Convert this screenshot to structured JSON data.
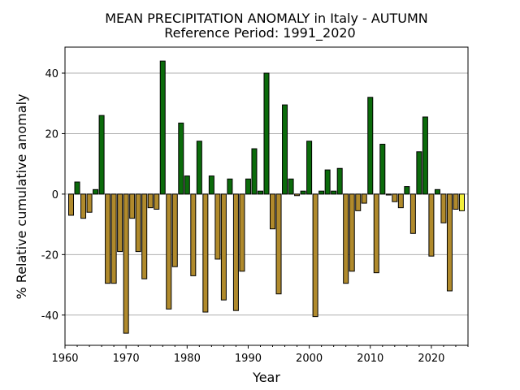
{
  "chart_data": {
    "type": "bar",
    "title": "MEAN PRECIPITATION ANOMALY in Italy - AUTUMN",
    "subtitle": "Reference Period: 1991_2020",
    "xlabel": "Year",
    "ylabel": "% Relative cumulative anomaly",
    "xlim": [
      1960,
      2026
    ],
    "ylim": [
      -50,
      48.6
    ],
    "xticks": [
      1960,
      1970,
      1980,
      1990,
      2000,
      2010,
      2020
    ],
    "yticks": [
      -40,
      -20,
      0,
      20,
      40
    ],
    "grid": "horizontal",
    "colors": {
      "positive": "#0b6b0b",
      "negative": "#b08a2c",
      "latest": "#f2ee3a",
      "edge": "#000000",
      "grid": "#b0b0b0"
    },
    "years": [
      1961,
      1962,
      1963,
      1964,
      1965,
      1966,
      1967,
      1968,
      1969,
      1970,
      1971,
      1972,
      1973,
      1974,
      1975,
      1976,
      1977,
      1978,
      1979,
      1980,
      1981,
      1982,
      1983,
      1984,
      1985,
      1986,
      1987,
      1988,
      1989,
      1990,
      1991,
      1992,
      1993,
      1994,
      1995,
      1996,
      1997,
      1998,
      1999,
      2000,
      2001,
      2002,
      2003,
      2004,
      2005,
      2006,
      2007,
      2008,
      2009,
      2010,
      2011,
      2012,
      2013,
      2014,
      2015,
      2016,
      2017,
      2018,
      2019,
      2020,
      2021,
      2022,
      2023,
      2024,
      2025
    ],
    "values": [
      -7,
      4,
      -8,
      -6,
      1.5,
      26,
      -29.5,
      -29.5,
      -19,
      -46,
      -8,
      -19,
      -28,
      -4.5,
      -5,
      44,
      -38,
      -24,
      23.5,
      6,
      -27,
      17.5,
      -39,
      6,
      -21.5,
      -35,
      5,
      -38.5,
      -25.5,
      5,
      15,
      1,
      40,
      -11.5,
      -33,
      29.5,
      5,
      -0.5,
      1,
      17.5,
      -40.5,
      1,
      8,
      1,
      8.5,
      -29.5,
      -25.5,
      -5.5,
      -3,
      32,
      -26,
      16.5,
      -0.3,
      -2.5,
      -4.5,
      2.5,
      -13,
      14,
      25.5,
      -20.5,
      1.5,
      -9.5,
      -32,
      -5,
      -5.5
    ]
  }
}
